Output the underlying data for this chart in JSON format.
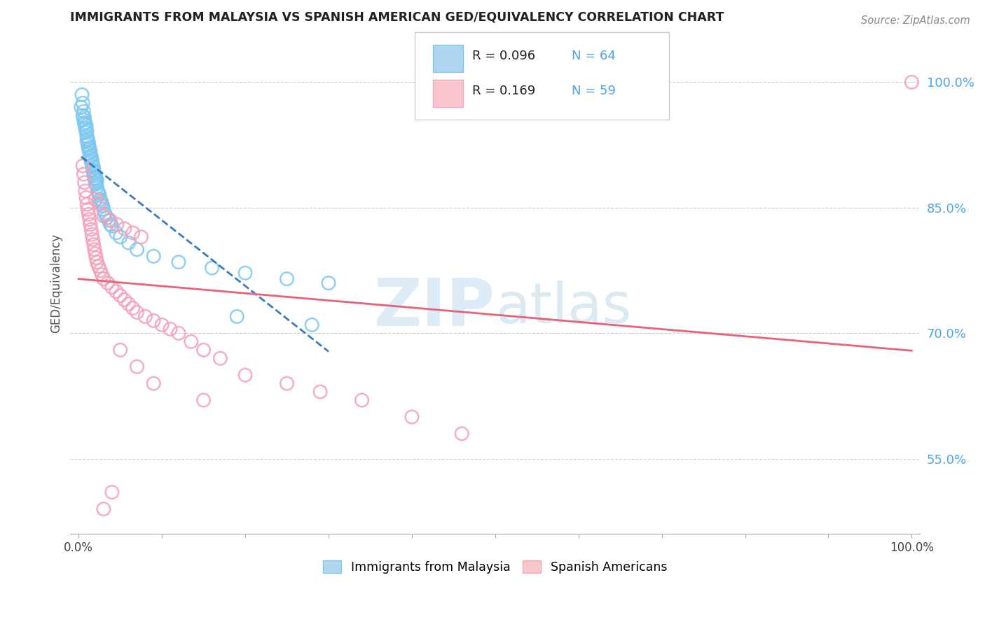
{
  "title": "IMMIGRANTS FROM MALAYSIA VS SPANISH AMERICAN GED/EQUIVALENCY CORRELATION CHART",
  "source": "Source: ZipAtlas.com",
  "ylabel": "GED/Equivalency",
  "yticks": [
    0.55,
    0.7,
    0.85,
    1.0
  ],
  "ytick_labels": [
    "55.0%",
    "70.0%",
    "85.0%",
    "100.0%"
  ],
  "xlim": [
    -0.01,
    1.01
  ],
  "ylim": [
    0.46,
    1.06
  ],
  "legend_r1": "R = 0.096",
  "legend_n1": "N = 64",
  "legend_r2": "R = 0.169",
  "legend_n2": "N = 59",
  "color_malaysia": "#7ec8f0",
  "color_spanish": "#f4a0b8",
  "trend_malaysia_color": "#3a7abf",
  "trend_spanish_color": "#e8607a",
  "background_color": "#ffffff",
  "malaysia_x": [
    0.003,
    0.004,
    0.005,
    0.005,
    0.006,
    0.006,
    0.007,
    0.007,
    0.008,
    0.008,
    0.009,
    0.009,
    0.01,
    0.01,
    0.01,
    0.011,
    0.011,
    0.012,
    0.012,
    0.013,
    0.013,
    0.014,
    0.014,
    0.015,
    0.015,
    0.016,
    0.016,
    0.017,
    0.017,
    0.018,
    0.018,
    0.019,
    0.019,
    0.02,
    0.02,
    0.021,
    0.021,
    0.022,
    0.022,
    0.023,
    0.024,
    0.025,
    0.026,
    0.027,
    0.028,
    0.029,
    0.03,
    0.032,
    0.034,
    0.036,
    0.038,
    0.04,
    0.045,
    0.05,
    0.06,
    0.07,
    0.09,
    0.12,
    0.16,
    0.2,
    0.25,
    0.3,
    0.19,
    0.28
  ],
  "malaysia_y": [
    0.97,
    0.985,
    0.96,
    0.975,
    0.955,
    0.965,
    0.95,
    0.958,
    0.945,
    0.952,
    0.94,
    0.948,
    0.935,
    0.942,
    0.93,
    0.925,
    0.932,
    0.92,
    0.928,
    0.915,
    0.922,
    0.91,
    0.918,
    0.905,
    0.912,
    0.9,
    0.908,
    0.895,
    0.902,
    0.89,
    0.898,
    0.885,
    0.892,
    0.88,
    0.888,
    0.878,
    0.885,
    0.875,
    0.882,
    0.87,
    0.868,
    0.865,
    0.86,
    0.858,
    0.855,
    0.852,
    0.848,
    0.842,
    0.838,
    0.835,
    0.83,
    0.828,
    0.82,
    0.815,
    0.808,
    0.8,
    0.792,
    0.785,
    0.778,
    0.772,
    0.765,
    0.76,
    0.72,
    0.71
  ],
  "spanish_x": [
    0.005,
    0.006,
    0.007,
    0.008,
    0.009,
    0.01,
    0.011,
    0.012,
    0.013,
    0.014,
    0.015,
    0.016,
    0.017,
    0.018,
    0.019,
    0.02,
    0.021,
    0.022,
    0.024,
    0.026,
    0.028,
    0.03,
    0.035,
    0.04,
    0.045,
    0.05,
    0.055,
    0.06,
    0.065,
    0.07,
    0.08,
    0.09,
    0.1,
    0.11,
    0.12,
    0.135,
    0.15,
    0.17,
    0.02,
    0.025,
    0.03,
    0.038,
    0.046,
    0.055,
    0.065,
    0.075,
    0.2,
    0.25,
    0.29,
    0.34,
    0.4,
    0.46,
    0.05,
    0.07,
    0.09,
    0.15,
    0.04,
    0.03,
    1.0
  ],
  "spanish_y": [
    0.9,
    0.89,
    0.88,
    0.87,
    0.862,
    0.854,
    0.848,
    0.842,
    0.836,
    0.83,
    0.824,
    0.818,
    0.812,
    0.806,
    0.8,
    0.795,
    0.79,
    0.785,
    0.78,
    0.775,
    0.77,
    0.765,
    0.76,
    0.755,
    0.75,
    0.745,
    0.74,
    0.735,
    0.73,
    0.725,
    0.72,
    0.715,
    0.71,
    0.705,
    0.7,
    0.69,
    0.68,
    0.67,
    0.86,
    0.855,
    0.84,
    0.835,
    0.83,
    0.825,
    0.82,
    0.815,
    0.65,
    0.64,
    0.63,
    0.62,
    0.6,
    0.58,
    0.68,
    0.66,
    0.64,
    0.62,
    0.51,
    0.49,
    1.0
  ],
  "watermark_zip": "ZIP",
  "watermark_atlas": "atlas"
}
